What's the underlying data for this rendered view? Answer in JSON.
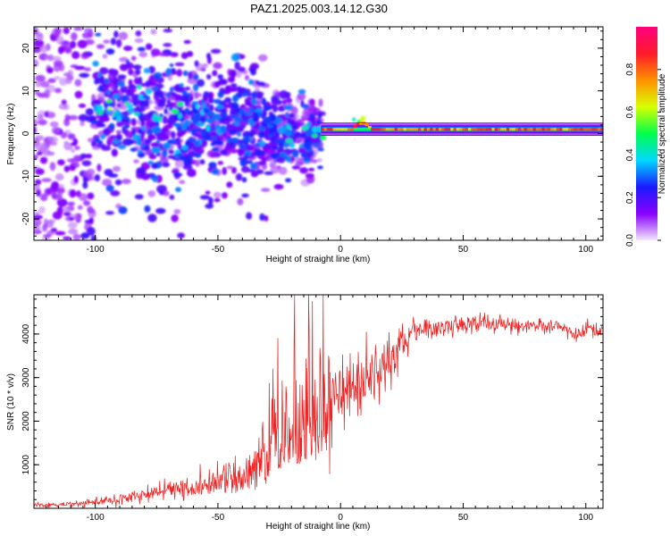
{
  "figure_title": "PAZ1.2025.003.14.12.G30",
  "chart_data": [
    {
      "type": "heatmap",
      "title": "",
      "xlabel": "Height of straight line (km)",
      "ylabel": "Frequency (Hz)",
      "xlim": [
        -125,
        107
      ],
      "ylim": [
        -25,
        25
      ],
      "xticks": [
        -100,
        -50,
        0,
        50,
        100
      ],
      "yticks": [
        -20,
        -10,
        0,
        10,
        20
      ],
      "colorbar": {
        "label": "Normalized spectral amplitude",
        "range": [
          0,
          1
        ],
        "ticks": [
          "0.0",
          "0.2",
          "0.4",
          "0.6",
          "0.8"
        ],
        "colors": [
          "#f3e6fc",
          "#8800ff",
          "#1b1bff",
          "#00d8ff",
          "#00ff4c",
          "#d8ff00",
          "#ff9100",
          "#ff1a2a",
          "#ff007f"
        ]
      },
      "line_ridge": {
        "description": "narrow high-amplitude band",
        "frequency_hz": 1,
        "x_range": [
          -8,
          107
        ],
        "amplitude": 0.85
      },
      "ridge_points": [
        {
          "x": -97,
          "y": 6,
          "v": 0.45
        },
        {
          "x": -93,
          "y": 5,
          "v": 0.6
        },
        {
          "x": -90,
          "y": 4,
          "v": 0.35
        },
        {
          "x": -85,
          "y": 6,
          "v": 0.5
        },
        {
          "x": -80,
          "y": 10,
          "v": 0.4
        },
        {
          "x": -74,
          "y": 4,
          "v": 0.4
        },
        {
          "x": -66,
          "y": 5,
          "v": 0.45
        },
        {
          "x": -60,
          "y": 6,
          "v": 0.35
        },
        {
          "x": -55,
          "y": 4,
          "v": 0.4
        },
        {
          "x": -48,
          "y": 6,
          "v": 0.3
        },
        {
          "x": -42,
          "y": 4,
          "v": 0.35
        },
        {
          "x": -35,
          "y": 3,
          "v": 0.3
        },
        {
          "x": -27,
          "y": 0,
          "v": 0.35
        },
        {
          "x": -20,
          "y": -1,
          "v": 0.4
        },
        {
          "x": -14,
          "y": 1,
          "v": 0.45
        },
        {
          "x": -66,
          "y": -4,
          "v": 0.35
        },
        {
          "x": -80,
          "y": -2,
          "v": 0.3
        },
        {
          "x": -40,
          "y": -3,
          "v": 0.3
        },
        {
          "x": -8,
          "y": 1,
          "v": 0.5
        },
        {
          "x": 7,
          "y": 2.5,
          "v": 0.6
        }
      ]
    },
    {
      "type": "line",
      "title": "",
      "xlabel": "Height of straight line (km)",
      "ylabel": "SNR (10 * v/v)",
      "xlim": [
        -125,
        107
      ],
      "ylim": [
        0,
        4900
      ],
      "xticks": [
        -100,
        -50,
        0,
        50,
        100
      ],
      "yticks": [
        1000,
        2000,
        3000,
        4000
      ],
      "color": "#ee2222",
      "envelope": {
        "x": [
          -125,
          -115,
          -105,
          -95,
          -85,
          -75,
          -65,
          -55,
          -45,
          -38,
          -32,
          -28,
          -25,
          -22,
          -18,
          -14,
          -10,
          -6,
          -3,
          0,
          3,
          6,
          10,
          15,
          20,
          25,
          30,
          35,
          40,
          50,
          60,
          70,
          80,
          90,
          95,
          100,
          107
        ],
        "y": [
          70,
          90,
          110,
          160,
          260,
          380,
          480,
          560,
          620,
          700,
          830,
          1050,
          1450,
          1700,
          1700,
          1600,
          1750,
          2150,
          2350,
          2500,
          2650,
          2750,
          3000,
          3150,
          3400,
          3850,
          4050,
          4130,
          4170,
          4220,
          4240,
          4200,
          4180,
          4200,
          3950,
          4150,
          4050
        ]
      },
      "noise_sd": {
        "x": [
          -125,
          -100,
          -80,
          -60,
          -45,
          -35,
          -28,
          -20,
          -12,
          -6,
          0,
          10,
          20,
          25,
          35,
          60,
          107
        ],
        "y": [
          35,
          45,
          90,
          160,
          230,
          330,
          650,
          850,
          1000,
          850,
          420,
          420,
          400,
          220,
          110,
          100,
          90
        ]
      },
      "spikes": [
        {
          "x": -27.5,
          "y": 3200
        },
        {
          "x": -25.5,
          "y": 3900
        },
        {
          "x": -13,
          "y": 4900
        },
        {
          "x": -11.5,
          "y": 4750
        },
        {
          "x": -7,
          "y": 4900
        }
      ]
    }
  ]
}
